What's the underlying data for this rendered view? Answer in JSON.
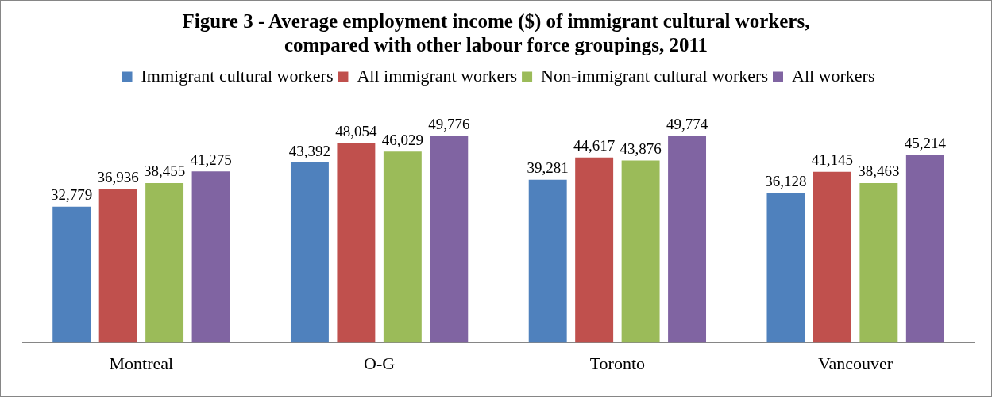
{
  "chart_data": {
    "type": "bar",
    "title": "Figure 3 - Average employment income ($) of immigrant cultural workers, compared with other labour force groupings, 2011",
    "categories": [
      "Montreal",
      "O-G",
      "Toronto",
      "Vancouver"
    ],
    "series": [
      {
        "name": "Immigrant cultural workers",
        "color": "#4f81bd",
        "values": [
          32779,
          43392,
          39281,
          36128
        ],
        "value_labels": [
          "32,779",
          "43,392",
          "39,281",
          "36,128"
        ]
      },
      {
        "name": "All immigrant workers",
        "color": "#c0504d",
        "values": [
          36936,
          48054,
          44617,
          41145
        ],
        "value_labels": [
          "36,936",
          "48,054",
          "44,617",
          "41,145"
        ]
      },
      {
        "name": "Non-immigrant cultural workers",
        "color": "#9bbb59",
        "values": [
          38455,
          46029,
          43876,
          38463
        ],
        "value_labels": [
          "38,455",
          "46,029",
          "43,876",
          "38,463"
        ]
      },
      {
        "name": "All workers",
        "color": "#8064a2",
        "values": [
          41275,
          49776,
          49774,
          45214
        ],
        "value_labels": [
          "41,275",
          "49,776",
          "49,774",
          "45,214"
        ]
      }
    ],
    "legend": "top"
  }
}
